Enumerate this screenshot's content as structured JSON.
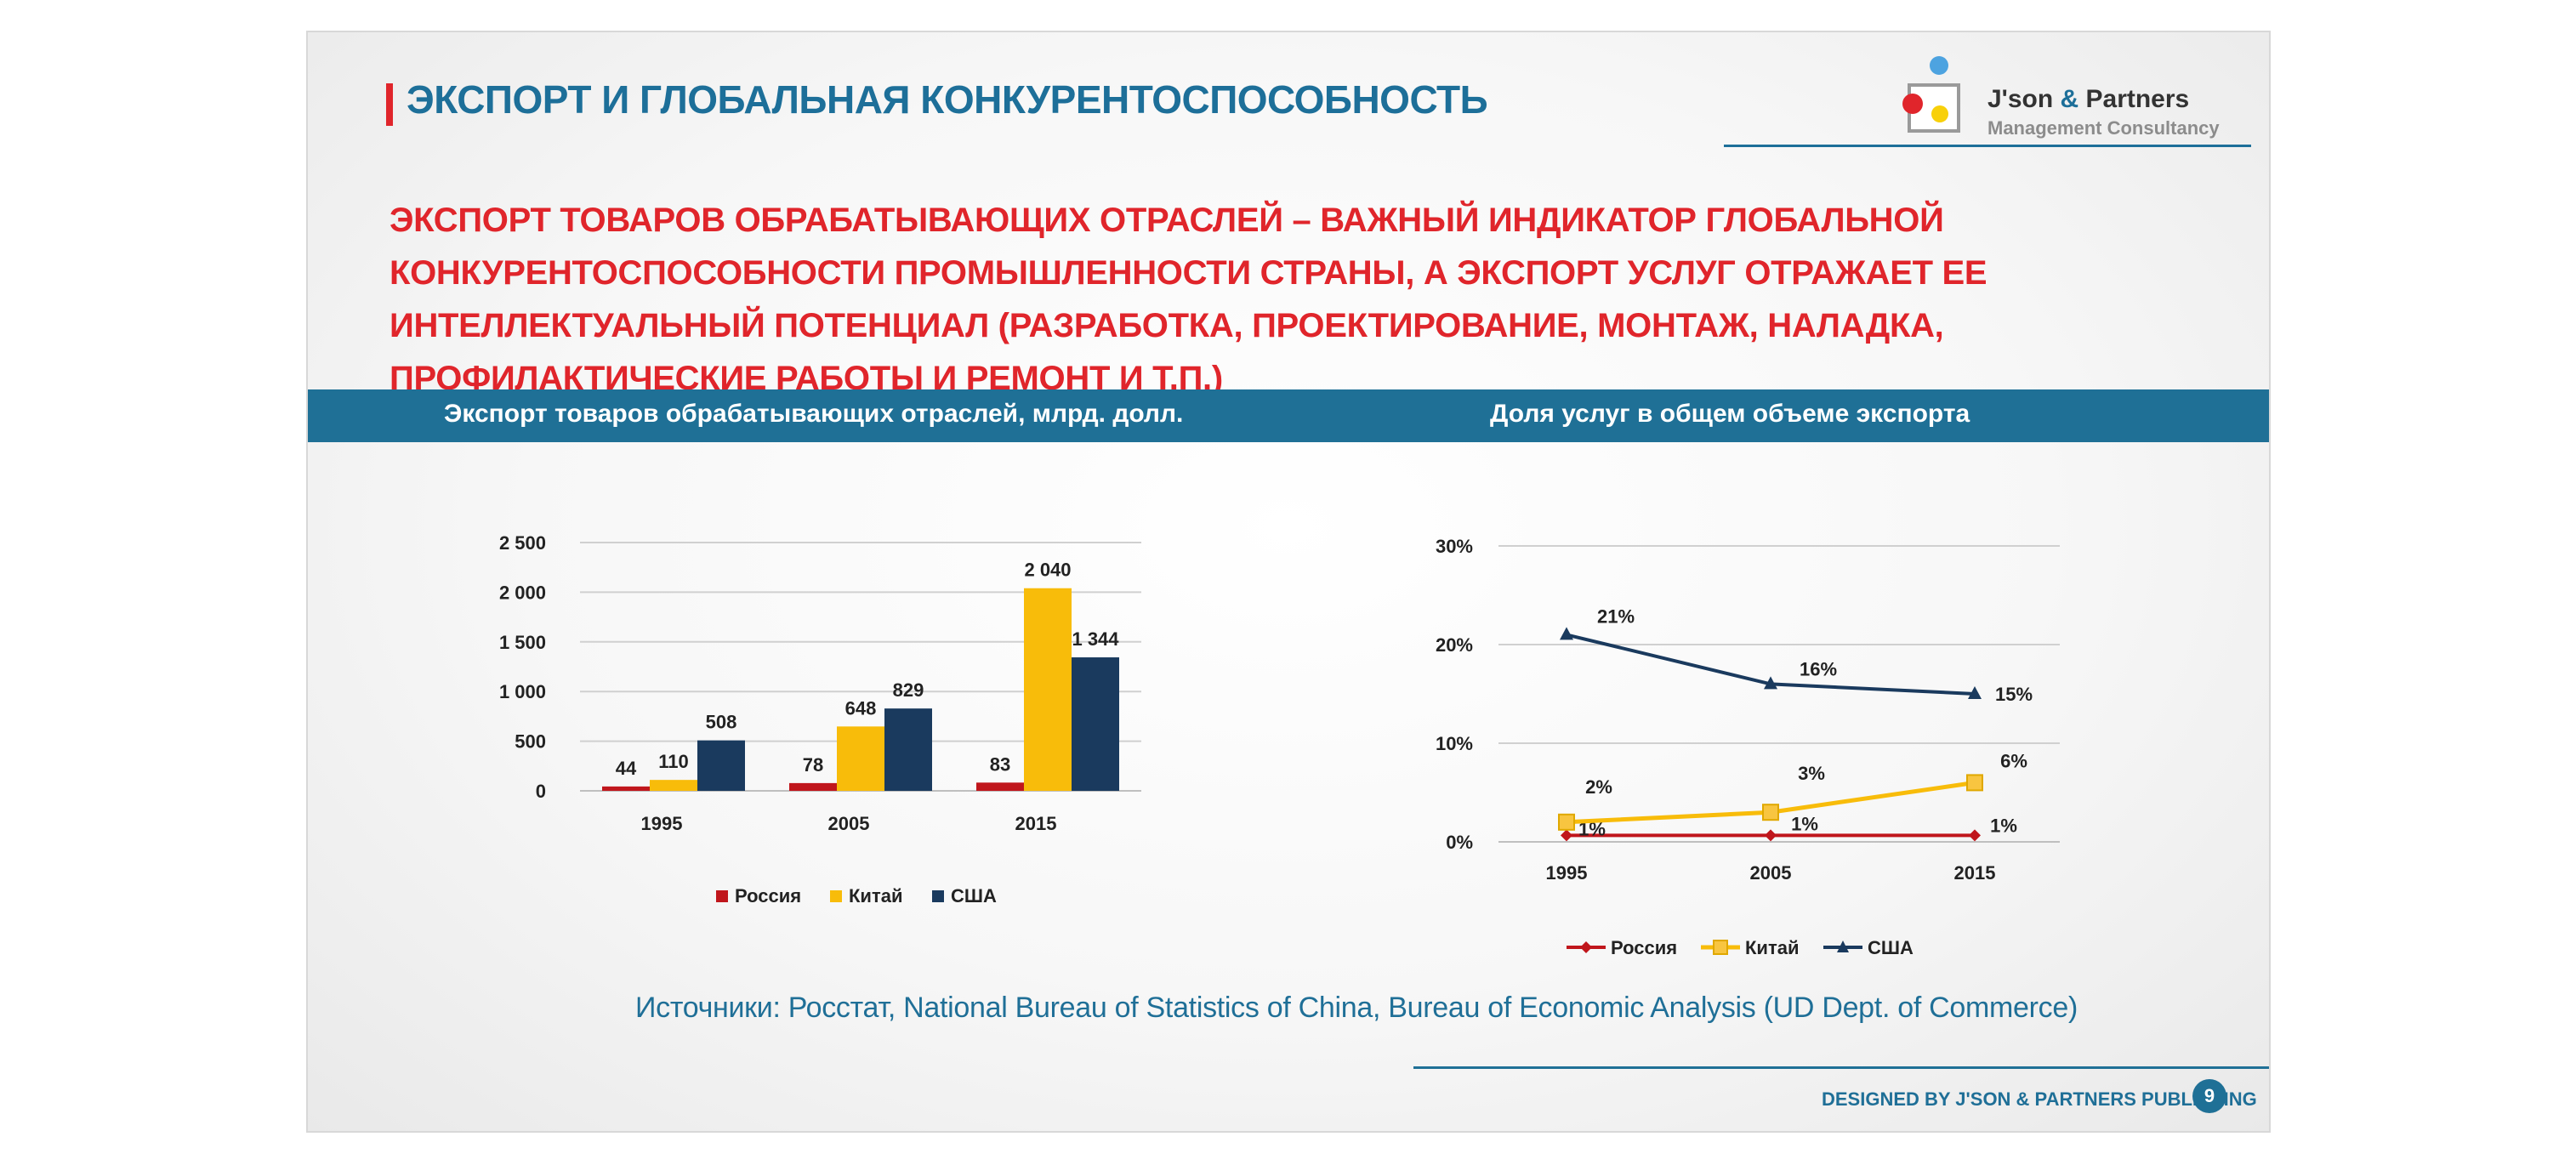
{
  "header": {
    "title": "ЭКСПОРТ И ГЛОБАЛЬНАЯ КОНКУРЕНТОСПОСОБНОСТЬ",
    "logo_name_1": "J'son",
    "logo_amp": " & ",
    "logo_name_2": "Partners",
    "logo_sub": "Management Consultancy"
  },
  "headline": "ЭКСПОРТ ТОВАРОВ ОБРАБАТЫВАЮЩИХ ОТРАСЛЕЙ – ВАЖНЫЙ ИНДИКАТОР ГЛОБАЛЬНОЙ КОНКУРЕНТОСПОСОБНОСТИ ПРОМЫШЛЕННОСТИ СТРАНЫ, А ЭКСПОРТ УСЛУГ ОТРАЖАЕТ ЕЕ ИНТЕЛЛЕКТУАЛЬНЫЙ  ПОТЕНЦИАЛ (РАЗРАБОТКА, ПРОЕКТИРОВАНИЕ, МОНТАЖ,  НАЛАДКА, ПРОФИЛАКТИЧЕСКИЕ РАБОТЫ И РЕМОНТ И Т.П.)",
  "colors": {
    "russia": "#c0161c",
    "china": "#f8bc0a",
    "usa": "#1a3a5e",
    "accent": "#1f7096",
    "red": "#e0252b"
  },
  "chart_data": [
    {
      "type": "bar",
      "title": "Экспорт товаров обрабатывающих отраслей, млрд. долл.",
      "categories": [
        "1995",
        "2005",
        "2015"
      ],
      "series": [
        {
          "name": "Россия",
          "values": [
            44,
            78,
            83
          ],
          "labels": [
            "44",
            "78",
            "83"
          ]
        },
        {
          "name": "Китай",
          "values": [
            110,
            648,
            2040
          ],
          "labels": [
            "110",
            "648",
            "2 040"
          ]
        },
        {
          "name": "США",
          "values": [
            508,
            829,
            1344
          ],
          "labels": [
            "508",
            "829",
            "1 344"
          ]
        }
      ],
      "ylim": [
        0,
        2500
      ],
      "yticks": [
        "0",
        "500",
        "1 000",
        "1 500",
        "2 000",
        "2 500"
      ],
      "legend": "bottom"
    },
    {
      "type": "line",
      "title": "Доля услуг в общем объеме экспорта",
      "categories": [
        "1995",
        "2005",
        "2015"
      ],
      "series": [
        {
          "name": "Россия",
          "values": [
            1,
            1,
            1
          ],
          "labels": [
            "1%",
            "1%",
            "1%"
          ]
        },
        {
          "name": "Китай",
          "values": [
            2,
            3,
            6
          ],
          "labels": [
            "2%",
            "3%",
            "6%"
          ]
        },
        {
          "name": "США",
          "values": [
            21,
            16,
            15
          ],
          "labels": [
            "21%",
            "16%",
            "15%"
          ]
        }
      ],
      "ylim": [
        0,
        30
      ],
      "yticks": [
        "0%",
        "10%",
        "20%",
        "30%"
      ],
      "legend": "bottom"
    }
  ],
  "sources": "Источники: Росстат, National Bureau of Statistics of China, Bureau of Economic Analysis (UD Dept. of Commerce)",
  "footer": "DESIGNED BY J'SON & PARTNERS PUBLISHING",
  "page_number": "9"
}
